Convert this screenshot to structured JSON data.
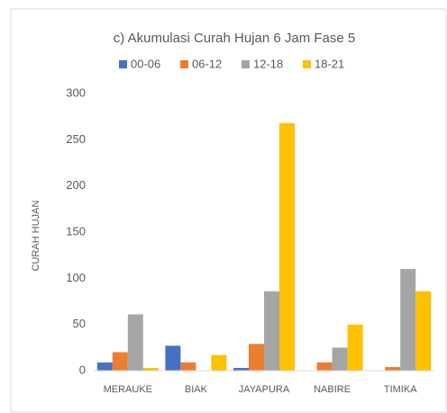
{
  "chart_data": {
    "type": "bar",
    "title": "c) Akumulasi  Curah Hujan 6 Jam Fase 5",
    "y_label": "CURAH HUJAN",
    "categories": [
      "MERAUKE",
      "BIAK",
      "JAYAPURA",
      "NABIRE",
      "TIMIKA"
    ],
    "series": [
      {
        "name": "00-06",
        "color": "#4472c4",
        "values": [
          9,
          27,
          3,
          0,
          0
        ]
      },
      {
        "name": "06-12",
        "color": "#ed7d31",
        "values": [
          20,
          9,
          29,
          9,
          4
        ]
      },
      {
        "name": "12-18",
        "color": "#a5a5a5",
        "values": [
          61,
          0,
          86,
          25,
          110
        ]
      },
      {
        "name": "18-21",
        "color": "#ffc000",
        "values": [
          3,
          17,
          268,
          50,
          86
        ]
      }
    ],
    "ylim": [
      0,
      300
    ],
    "yticks": [
      0,
      50,
      100,
      150,
      200,
      250,
      300
    ],
    "grid": false,
    "legend": "top"
  }
}
